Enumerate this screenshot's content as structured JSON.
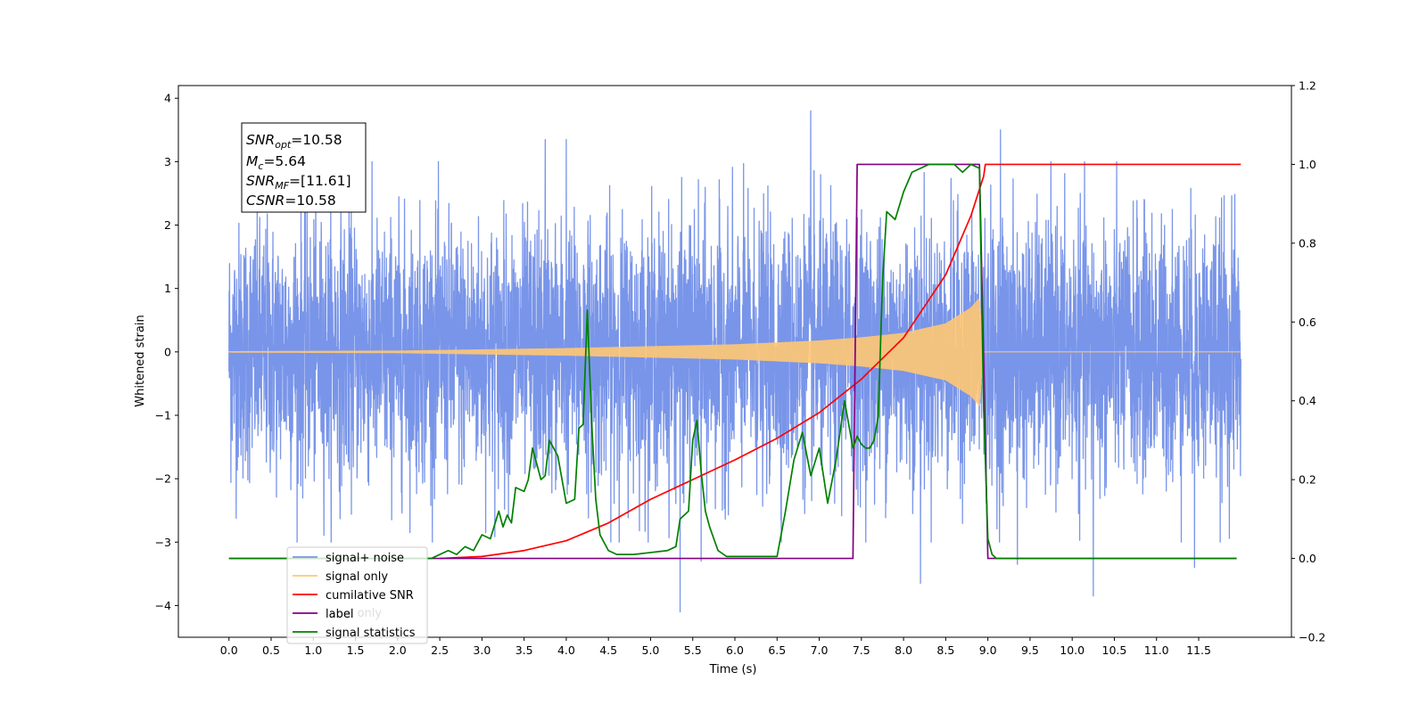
{
  "chart_data": {
    "type": "line",
    "xlabel": "Time (s)",
    "ylabel": "Whitened strain",
    "xlim": [
      -0.6,
      12.6
    ],
    "ylim": [
      -4.5,
      4.2
    ],
    "y2lim": [
      -0.2,
      1.2
    ],
    "xticks": [
      "0.0",
      "0.5",
      "1.0",
      "1.5",
      "2.0",
      "2.5",
      "3.0",
      "3.5",
      "4.0",
      "4.5",
      "5.0",
      "5.5",
      "6.0",
      "6.5",
      "7.0",
      "7.5",
      "8.0",
      "8.5",
      "9.0",
      "9.5",
      "10.0",
      "10.5",
      "11.0",
      "11.5"
    ],
    "yticks": [
      "4",
      "3",
      "2",
      "1",
      "0",
      "−1",
      "−2",
      "−3",
      "−4"
    ],
    "y2ticks": [
      "1.2",
      "1.0",
      "0.8",
      "0.6",
      "0.4",
      "0.2",
      "0.0",
      "−0.2"
    ],
    "annotation": {
      "snr_opt_label": "SNR",
      "snr_opt_sub": "opt",
      "snr_opt_value": "=10.58",
      "mc_label": "M",
      "mc_sub": "c",
      "mc_value": "=5.64",
      "snr_mf_label": "SNR",
      "snr_mf_sub": "MF",
      "snr_mf_value": "=[11.61]",
      "csnr_label": "CSNR",
      "csnr_value": "=10.58"
    },
    "legend": {
      "placement": "lower-left",
      "entries": [
        "signal+ noise",
        "signal only",
        "cumilative SNR",
        "label",
        "signal statistics"
      ],
      "occluded_text": "label only"
    },
    "series": [
      {
        "name": "signal+ noise",
        "axis": "left",
        "color": "#7995e9",
        "kind": "noise",
        "x_start": 0.0,
        "x_end": 12.0,
        "typical_range": [
          -1.5,
          1.5
        ],
        "peaks": [
          {
            "x": 6.9,
            "y": 3.8
          },
          {
            "x": 9.15,
            "y": 3.5
          },
          {
            "x": 3.75,
            "y": 3.35
          },
          {
            "x": 4.0,
            "y": 3.35
          },
          {
            "x": 8.2,
            "y": 3.3
          },
          {
            "x": 5.6,
            "y": 3.1
          },
          {
            "x": 5.35,
            "y": -4.1
          },
          {
            "x": 10.25,
            "y": -3.85
          },
          {
            "x": 8.2,
            "y": -3.65
          },
          {
            "x": 11.45,
            "y": -3.4
          },
          {
            "x": 9.35,
            "y": -3.35
          },
          {
            "x": 5.6,
            "y": -3.3
          }
        ]
      },
      {
        "name": "signal only",
        "axis": "left",
        "color": "#ffc773",
        "kind": "chirp",
        "x_start": 0.0,
        "x_end": 12.0,
        "merger_time": 8.95,
        "envelope": [
          [
            0.0,
            0.01
          ],
          [
            2.0,
            0.02
          ],
          [
            4.0,
            0.06
          ],
          [
            5.0,
            0.09
          ],
          [
            6.0,
            0.12
          ],
          [
            7.0,
            0.18
          ],
          [
            7.5,
            0.23
          ],
          [
            8.0,
            0.3
          ],
          [
            8.5,
            0.45
          ],
          [
            8.8,
            0.7
          ],
          [
            8.9,
            0.85
          ],
          [
            8.95,
            0.0
          ],
          [
            12.0,
            0.0
          ]
        ]
      },
      {
        "name": "cumilative SNR",
        "axis": "right",
        "color": "#ff0000",
        "x": [
          2.5,
          3.0,
          3.5,
          4.0,
          4.5,
          5.0,
          5.5,
          6.0,
          6.5,
          7.0,
          7.5,
          8.0,
          8.5,
          8.8,
          8.95,
          8.97,
          12.0
        ],
        "y": [
          0.0,
          0.005,
          0.02,
          0.045,
          0.09,
          0.15,
          0.2,
          0.25,
          0.305,
          0.37,
          0.455,
          0.56,
          0.72,
          0.87,
          0.97,
          1.0,
          1.0
        ]
      },
      {
        "name": "label",
        "axis": "right",
        "color": "#800080",
        "x": [
          0.0,
          7.4,
          7.45,
          8.9,
          9.0,
          11.95
        ],
        "y": [
          0.0,
          0.0,
          1.0,
          1.0,
          0.0,
          0.0
        ]
      },
      {
        "name": "signal statistics",
        "axis": "right",
        "color": "#008000",
        "x": [
          0.0,
          2.4,
          2.6,
          2.7,
          2.8,
          2.9,
          3.0,
          3.1,
          3.2,
          3.25,
          3.3,
          3.35,
          3.4,
          3.5,
          3.55,
          3.6,
          3.7,
          3.75,
          3.8,
          3.9,
          4.0,
          4.1,
          4.15,
          4.2,
          4.25,
          4.3,
          4.35,
          4.4,
          4.5,
          4.6,
          4.8,
          5.0,
          5.2,
          5.3,
          5.35,
          5.45,
          5.5,
          5.55,
          5.6,
          5.65,
          5.7,
          5.8,
          5.9,
          6.0,
          6.1,
          6.2,
          6.5,
          6.6,
          6.7,
          6.8,
          6.9,
          7.0,
          7.1,
          7.2,
          7.3,
          7.4,
          7.45,
          7.5,
          7.55,
          7.6,
          7.65,
          7.7,
          7.75,
          7.8,
          7.85,
          7.9,
          8.0,
          8.1,
          8.2,
          8.3,
          8.5,
          8.6,
          8.7,
          8.8,
          8.9,
          8.95,
          9.0,
          9.05,
          9.1,
          11.95
        ],
        "y": [
          0.0,
          0.0,
          0.02,
          0.01,
          0.03,
          0.02,
          0.06,
          0.05,
          0.12,
          0.08,
          0.11,
          0.09,
          0.18,
          0.17,
          0.2,
          0.28,
          0.2,
          0.21,
          0.3,
          0.26,
          0.14,
          0.15,
          0.33,
          0.34,
          0.63,
          0.35,
          0.15,
          0.06,
          0.02,
          0.01,
          0.01,
          0.015,
          0.02,
          0.03,
          0.1,
          0.12,
          0.3,
          0.35,
          0.22,
          0.12,
          0.08,
          0.02,
          0.005,
          0.005,
          0.005,
          0.005,
          0.005,
          0.12,
          0.25,
          0.32,
          0.21,
          0.28,
          0.14,
          0.25,
          0.4,
          0.28,
          0.31,
          0.29,
          0.28,
          0.28,
          0.3,
          0.36,
          0.7,
          0.88,
          0.87,
          0.86,
          0.93,
          0.98,
          0.99,
          1.0,
          1.0,
          1.0,
          0.98,
          1.0,
          0.99,
          0.38,
          0.05,
          0.01,
          0.0,
          0.0
        ]
      }
    ]
  }
}
